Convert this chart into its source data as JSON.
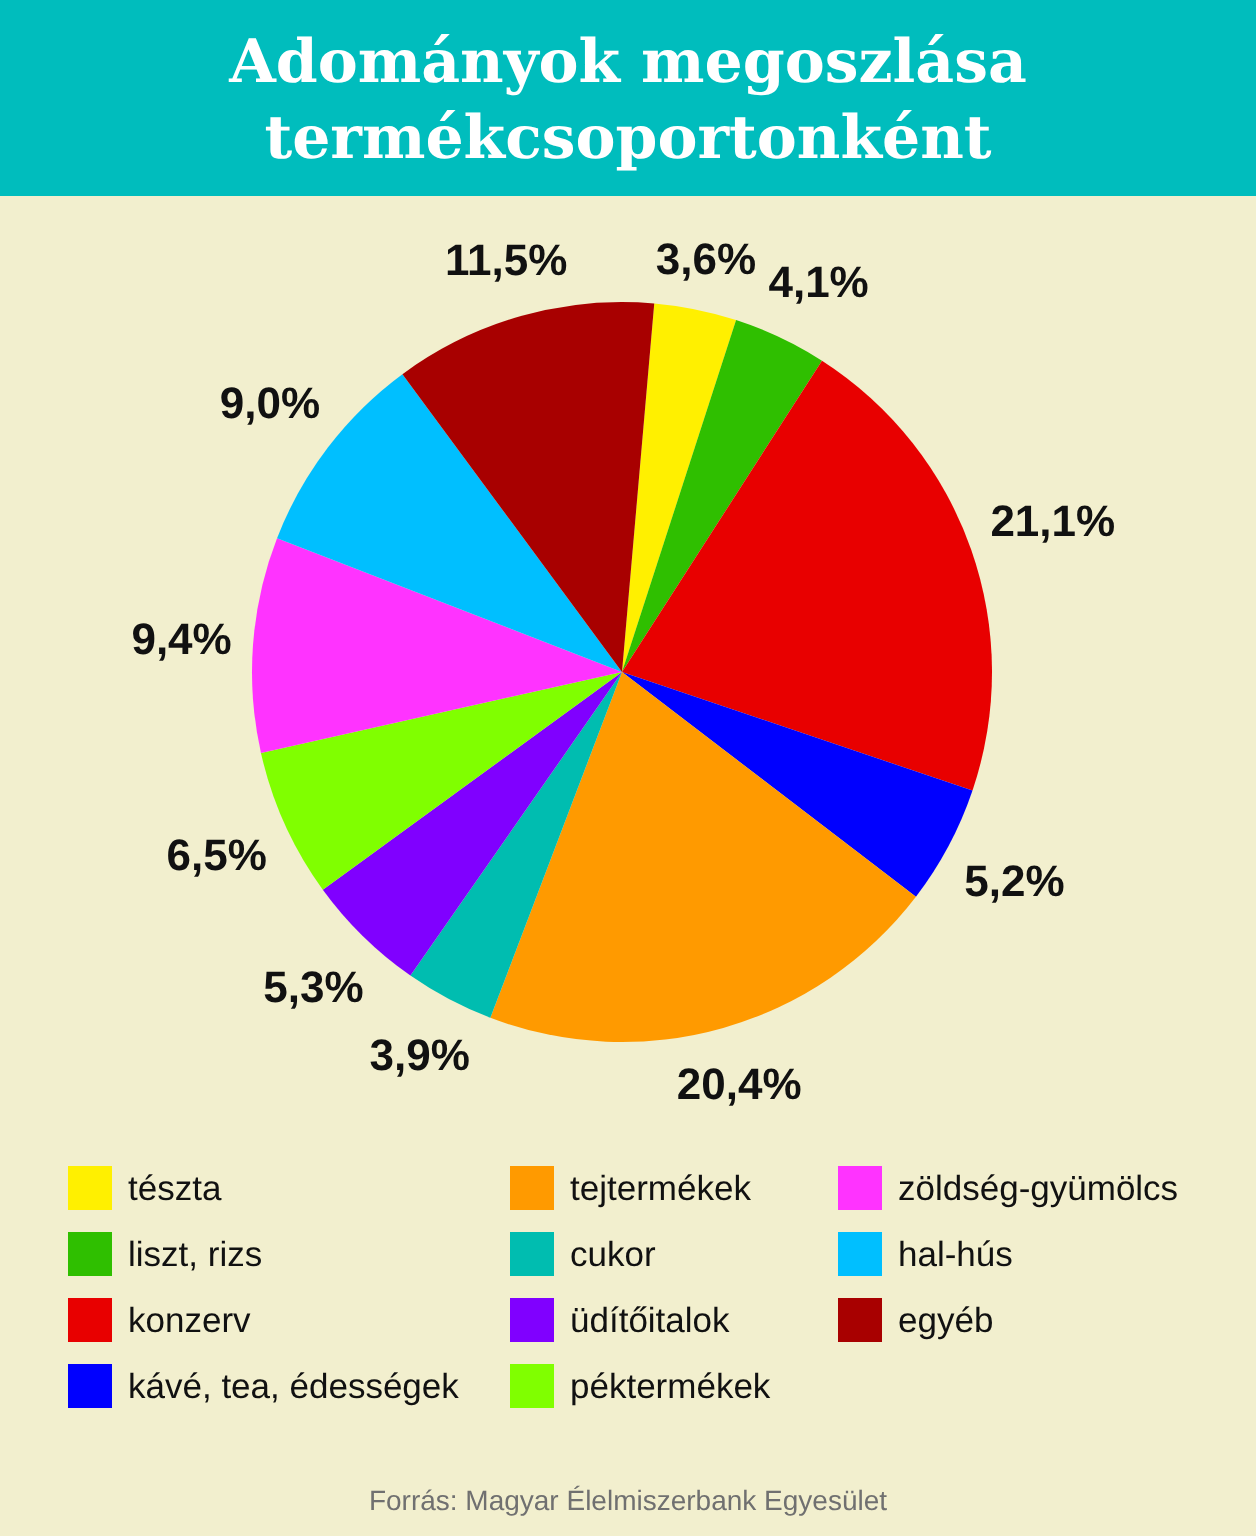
{
  "chart_data": {
    "type": "pie",
    "title": "Adományok megoszlása termékcsoportonként",
    "categories": [
      "tészta",
      "liszt, rizs",
      "konzerv",
      "kávé, tea, édességek",
      "tejtermékek",
      "cukor",
      "üdítőitalok",
      "péktermékek",
      "zöldség-gyümölcs",
      "hal-hús",
      "egyéb"
    ],
    "values": [
      3.6,
      4.1,
      21.1,
      5.2,
      20.4,
      3.9,
      5.3,
      6.5,
      9.4,
      9.0,
      11.5
    ],
    "colors": [
      "#fff000",
      "#2fbf00",
      "#e80000",
      "#0000ff",
      "#ff9a00",
      "#00bdb0",
      "#8000ff",
      "#80ff00",
      "#ff33ff",
      "#00bfff",
      "#a80000"
    ],
    "value_labels": [
      "3,6%",
      "4,1%",
      "21,1%",
      "5,2%",
      "20,4%",
      "3,9%",
      "5,3%",
      "6,5%",
      "9,4%",
      "9,0%",
      "11,5%"
    ],
    "legend": "bottom",
    "annotations": [
      "Forrás: Magyar Élelmiszerbank Egyesület"
    ]
  }
}
